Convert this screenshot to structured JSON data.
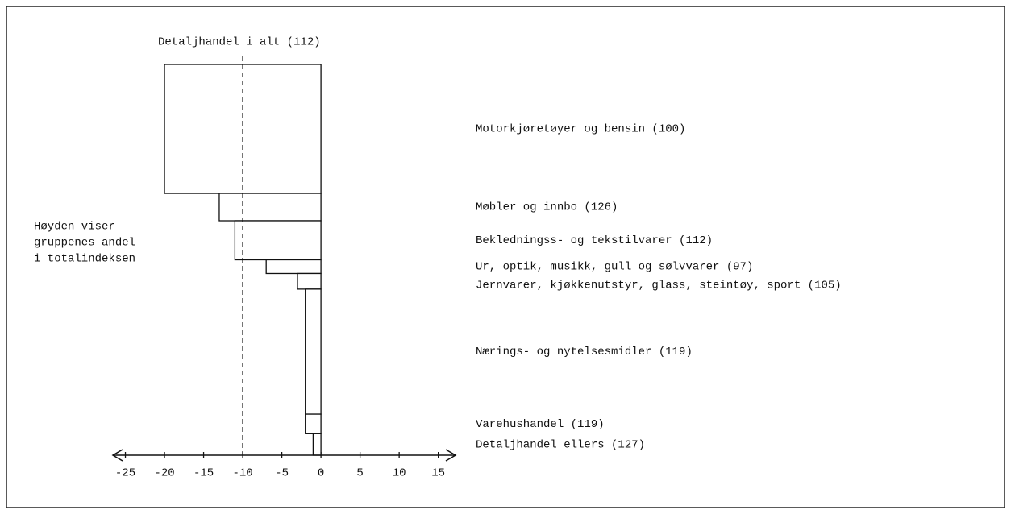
{
  "chart_data": {
    "type": "variwide_bar",
    "title": "Detaljhandel i alt (112)",
    "annotation": [
      "Høyden viser",
      "gruppenes andel",
      "i totalindeksen"
    ],
    "categories": [
      "Motorkjøretøyer og bensin (100)",
      "Møbler og innbo (126)",
      "Bekledningss- og tekstilvarer (112)",
      "Ur, optik, musikk, gull og sølvvarer (97)",
      "Jernvarer, kjøkkenutstyr, glass, steintøy, sport (105)",
      "Nærings- og nytelsesmidler (119)",
      "Varehushandel (119)",
      "Detaljhandel ellers (127)"
    ],
    "values": [
      -20,
      -13,
      -11,
      -7,
      -3,
      -2,
      -2,
      -1
    ],
    "weights": [
      33,
      7,
      10,
      3.5,
      4,
      32,
      5,
      5.5
    ],
    "reference_line": -10,
    "xlim": [
      -26.6,
      17.2
    ],
    "xticks": [
      -25,
      -20,
      -15,
      -10,
      -5,
      0,
      5,
      10,
      15
    ],
    "color": "#ffffff"
  }
}
